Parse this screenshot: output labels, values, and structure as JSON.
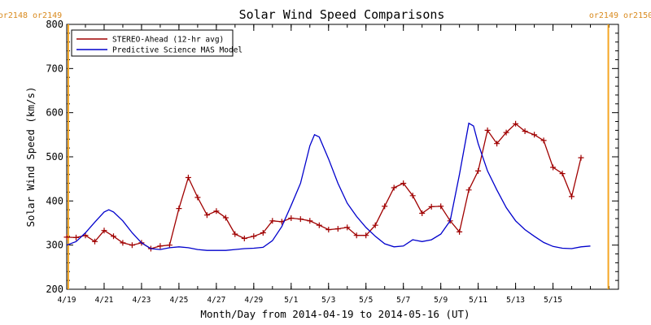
{
  "chart_data": {
    "type": "line",
    "title": "Solar Wind Speed Comparisons",
    "xlabel": "Month/Day from 2014-04-19 to 2014-05-16 (UT)",
    "ylabel": "Solar Wind Speed (km/s)",
    "x_unit": "date",
    "xlim": [
      "2014-04-19",
      "2014-05-18 12:00"
    ],
    "ylim": [
      200,
      800
    ],
    "yticks": [
      200,
      300,
      400,
      500,
      600,
      700,
      800
    ],
    "xticks": [
      {
        "date": "2014-04-19",
        "label": "4/19"
      },
      {
        "date": "2014-04-21",
        "label": "4/21"
      },
      {
        "date": "2014-04-23",
        "label": "4/23"
      },
      {
        "date": "2014-04-25",
        "label": "4/25"
      },
      {
        "date": "2014-04-27",
        "label": "4/27"
      },
      {
        "date": "2014-04-29",
        "label": "4/29"
      },
      {
        "date": "2014-05-01",
        "label": "5/1"
      },
      {
        "date": "2014-05-03",
        "label": "5/3"
      },
      {
        "date": "2014-05-05",
        "label": "5/5"
      },
      {
        "date": "2014-05-07",
        "label": "5/7"
      },
      {
        "date": "2014-05-09",
        "label": "5/9"
      },
      {
        "date": "2014-05-11",
        "label": "5/11"
      },
      {
        "date": "2014-05-13",
        "label": "5/13"
      },
      {
        "date": "2014-05-15",
        "label": "5/15"
      }
    ],
    "rotation_markers": [
      {
        "date": "2014-04-19 02:00",
        "label": "or2148 or2149",
        "side": "left"
      },
      {
        "date": "2014-05-17 23:00",
        "label": "or2149 or2150",
        "side": "right"
      }
    ],
    "legend_position": "top-left",
    "series": [
      {
        "name": "STEREO-Ahead (12-hr avg)",
        "color": "#a00000",
        "markers": "plus",
        "points": [
          [
            "2014-04-19 00:00",
            318
          ],
          [
            "2014-04-19 12:00",
            317
          ],
          [
            "2014-04-20 00:00",
            322
          ],
          [
            "2014-04-20 12:00",
            308
          ],
          [
            "2014-04-21 00:00",
            333
          ],
          [
            "2014-04-21 12:00",
            320
          ],
          [
            "2014-04-22 00:00",
            305
          ],
          [
            "2014-04-22 12:00",
            300
          ],
          [
            "2014-04-23 00:00",
            305
          ],
          [
            "2014-04-23 12:00",
            292
          ],
          [
            "2014-04-24 00:00",
            298
          ],
          [
            "2014-04-24 12:00",
            300
          ],
          [
            "2014-04-25 00:00",
            383
          ],
          [
            "2014-04-25 12:00",
            453
          ],
          [
            "2014-04-26 00:00",
            408
          ],
          [
            "2014-04-26 12:00",
            368
          ],
          [
            "2014-04-27 00:00",
            377
          ],
          [
            "2014-04-27 12:00",
            362
          ],
          [
            "2014-04-28 00:00",
            325
          ],
          [
            "2014-04-28 12:00",
            315
          ],
          [
            "2014-04-29 00:00",
            320
          ],
          [
            "2014-04-29 12:00",
            328
          ],
          [
            "2014-04-30 00:00",
            355
          ],
          [
            "2014-04-30 12:00",
            353
          ],
          [
            "2014-05-01 00:00",
            361
          ],
          [
            "2014-05-01 12:00",
            359
          ],
          [
            "2014-05-02 00:00",
            355
          ],
          [
            "2014-05-02 12:00",
            345
          ],
          [
            "2014-05-03 00:00",
            335
          ],
          [
            "2014-05-03 12:00",
            337
          ],
          [
            "2014-05-04 00:00",
            340
          ],
          [
            "2014-05-04 12:00",
            322
          ],
          [
            "2014-05-05 00:00",
            322
          ],
          [
            "2014-05-05 12:00",
            345
          ],
          [
            "2014-05-06 00:00",
            388
          ],
          [
            "2014-05-06 12:00",
            430
          ],
          [
            "2014-05-07 00:00",
            440
          ],
          [
            "2014-05-07 12:00",
            412
          ],
          [
            "2014-05-08 00:00",
            372
          ],
          [
            "2014-05-08 12:00",
            387
          ],
          [
            "2014-05-09 00:00",
            388
          ],
          [
            "2014-05-09 12:00",
            355
          ],
          [
            "2014-05-10 00:00",
            330
          ],
          [
            "2014-05-10 12:00",
            425
          ],
          [
            "2014-05-11 00:00",
            468
          ],
          [
            "2014-05-11 12:00",
            560
          ],
          [
            "2014-05-12 00:00",
            530
          ],
          [
            "2014-05-12 12:00",
            555
          ],
          [
            "2014-05-13 00:00",
            575
          ],
          [
            "2014-05-13 12:00",
            558
          ],
          [
            "2014-05-14 00:00",
            550
          ],
          [
            "2014-05-14 12:00",
            537
          ],
          [
            "2014-05-15 00:00",
            476
          ],
          [
            "2014-05-15 12:00",
            462
          ],
          [
            "2014-05-16 00:00",
            410
          ],
          [
            "2014-05-16 12:00",
            498
          ]
        ]
      },
      {
        "name": "Predictive Science MAS Model",
        "color": "#0000cc",
        "markers": "none",
        "points": [
          [
            "2014-04-19 00:00",
            300
          ],
          [
            "2014-04-19 12:00",
            308
          ],
          [
            "2014-04-20 00:00",
            328
          ],
          [
            "2014-04-20 12:00",
            352
          ],
          [
            "2014-04-21 00:00",
            375
          ],
          [
            "2014-04-21 06:00",
            380
          ],
          [
            "2014-04-21 12:00",
            375
          ],
          [
            "2014-04-22 00:00",
            355
          ],
          [
            "2014-04-22 12:00",
            328
          ],
          [
            "2014-04-23 00:00",
            305
          ],
          [
            "2014-04-23 12:00",
            292
          ],
          [
            "2014-04-24 00:00",
            290
          ],
          [
            "2014-04-24 12:00",
            294
          ],
          [
            "2014-04-25 00:00",
            296
          ],
          [
            "2014-04-25 12:00",
            294
          ],
          [
            "2014-04-26 00:00",
            290
          ],
          [
            "2014-04-26 12:00",
            288
          ],
          [
            "2014-04-27 00:00",
            288
          ],
          [
            "2014-04-27 12:00",
            288
          ],
          [
            "2014-04-28 00:00",
            290
          ],
          [
            "2014-04-28 12:00",
            292
          ],
          [
            "2014-04-29 00:00",
            293
          ],
          [
            "2014-04-29 12:00",
            295
          ],
          [
            "2014-04-30 00:00",
            310
          ],
          [
            "2014-04-30 12:00",
            342
          ],
          [
            "2014-05-01 00:00",
            390
          ],
          [
            "2014-05-01 12:00",
            440
          ],
          [
            "2014-05-02 00:00",
            525
          ],
          [
            "2014-05-02 06:00",
            550
          ],
          [
            "2014-05-02 12:00",
            545
          ],
          [
            "2014-05-03 00:00",
            495
          ],
          [
            "2014-05-03 12:00",
            440
          ],
          [
            "2014-05-04 00:00",
            395
          ],
          [
            "2014-05-04 12:00",
            365
          ],
          [
            "2014-05-05 00:00",
            340
          ],
          [
            "2014-05-05 12:00",
            320
          ],
          [
            "2014-05-06 00:00",
            303
          ],
          [
            "2014-05-06 12:00",
            296
          ],
          [
            "2014-05-07 00:00",
            298
          ],
          [
            "2014-05-07 12:00",
            312
          ],
          [
            "2014-05-08 00:00",
            308
          ],
          [
            "2014-05-08 12:00",
            312
          ],
          [
            "2014-05-09 00:00",
            325
          ],
          [
            "2014-05-09 12:00",
            355
          ],
          [
            "2014-05-10 00:00",
            460
          ],
          [
            "2014-05-10 12:00",
            576
          ],
          [
            "2014-05-10 18:00",
            570
          ],
          [
            "2014-05-11 00:00",
            530
          ],
          [
            "2014-05-11 12:00",
            468
          ],
          [
            "2014-05-12 00:00",
            425
          ],
          [
            "2014-05-12 12:00",
            385
          ],
          [
            "2014-05-13 00:00",
            355
          ],
          [
            "2014-05-13 12:00",
            335
          ],
          [
            "2014-05-14 00:00",
            320
          ],
          [
            "2014-05-14 12:00",
            306
          ],
          [
            "2014-05-15 00:00",
            297
          ],
          [
            "2014-05-15 12:00",
            293
          ],
          [
            "2014-05-16 00:00",
            292
          ],
          [
            "2014-05-16 12:00",
            296
          ],
          [
            "2014-05-17 00:00",
            298
          ]
        ]
      }
    ]
  }
}
